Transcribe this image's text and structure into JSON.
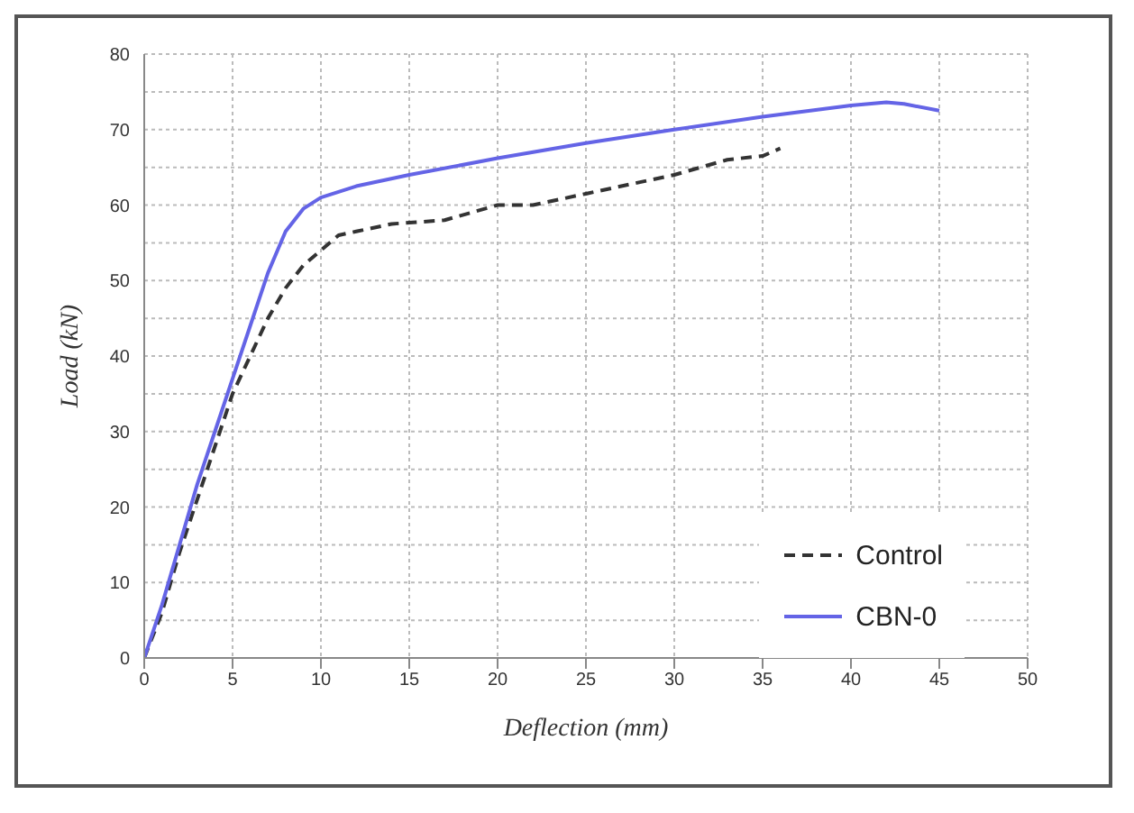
{
  "chart_data": {
    "type": "line",
    "xlabel": "Deflection (mm)",
    "ylabel": "Load (kN)",
    "xlim": [
      0,
      50
    ],
    "xticks": [
      0,
      5,
      10,
      15,
      20,
      25,
      30,
      35,
      40,
      45,
      50
    ],
    "ylim": [
      0,
      80
    ],
    "yticks": [
      0,
      {
        "value": 5,
        "label": null
      },
      10,
      {
        "value": 15,
        "label": null
      },
      20,
      {
        "value": 25,
        "label": null
      },
      30,
      {
        "value": 35,
        "label": null
      },
      40,
      {
        "value": 45,
        "label": null
      },
      50,
      {
        "value": 55,
        "label": null
      },
      60,
      {
        "value": 65,
        "label": null
      },
      70,
      {
        "value": 75,
        "label": null
      },
      80
    ],
    "grid": true,
    "legend": "bottom right",
    "marker": "none",
    "series": [
      {
        "name": "Control",
        "color": "#333333",
        "line_style": "dashed",
        "x": [
          0,
          1,
          2,
          3,
          4,
          5,
          6,
          7,
          8,
          9,
          10,
          11,
          12,
          14,
          17,
          20,
          22,
          25,
          28,
          30,
          33,
          35,
          36
        ],
        "values": [
          0,
          6,
          14,
          21,
          28,
          35,
          40,
          45,
          49,
          52,
          54,
          56,
          56.5,
          57.5,
          58,
          60,
          60,
          61.5,
          63,
          64,
          66,
          66.5,
          67.5
        ]
      },
      {
        "name": "CBN-0",
        "color": "#6464e6",
        "line_style": "solid",
        "x": [
          0,
          1,
          2,
          3,
          4,
          5,
          6,
          7,
          8,
          9,
          10,
          12,
          15,
          20,
          25,
          30,
          35,
          40,
          42,
          43,
          45
        ],
        "values": [
          0,
          7,
          15,
          23,
          30,
          37,
          44,
          51,
          56.5,
          59.5,
          61,
          62.5,
          64,
          66.2,
          68.2,
          70,
          71.7,
          73.2,
          73.6,
          73.4,
          72.5
        ]
      }
    ]
  }
}
